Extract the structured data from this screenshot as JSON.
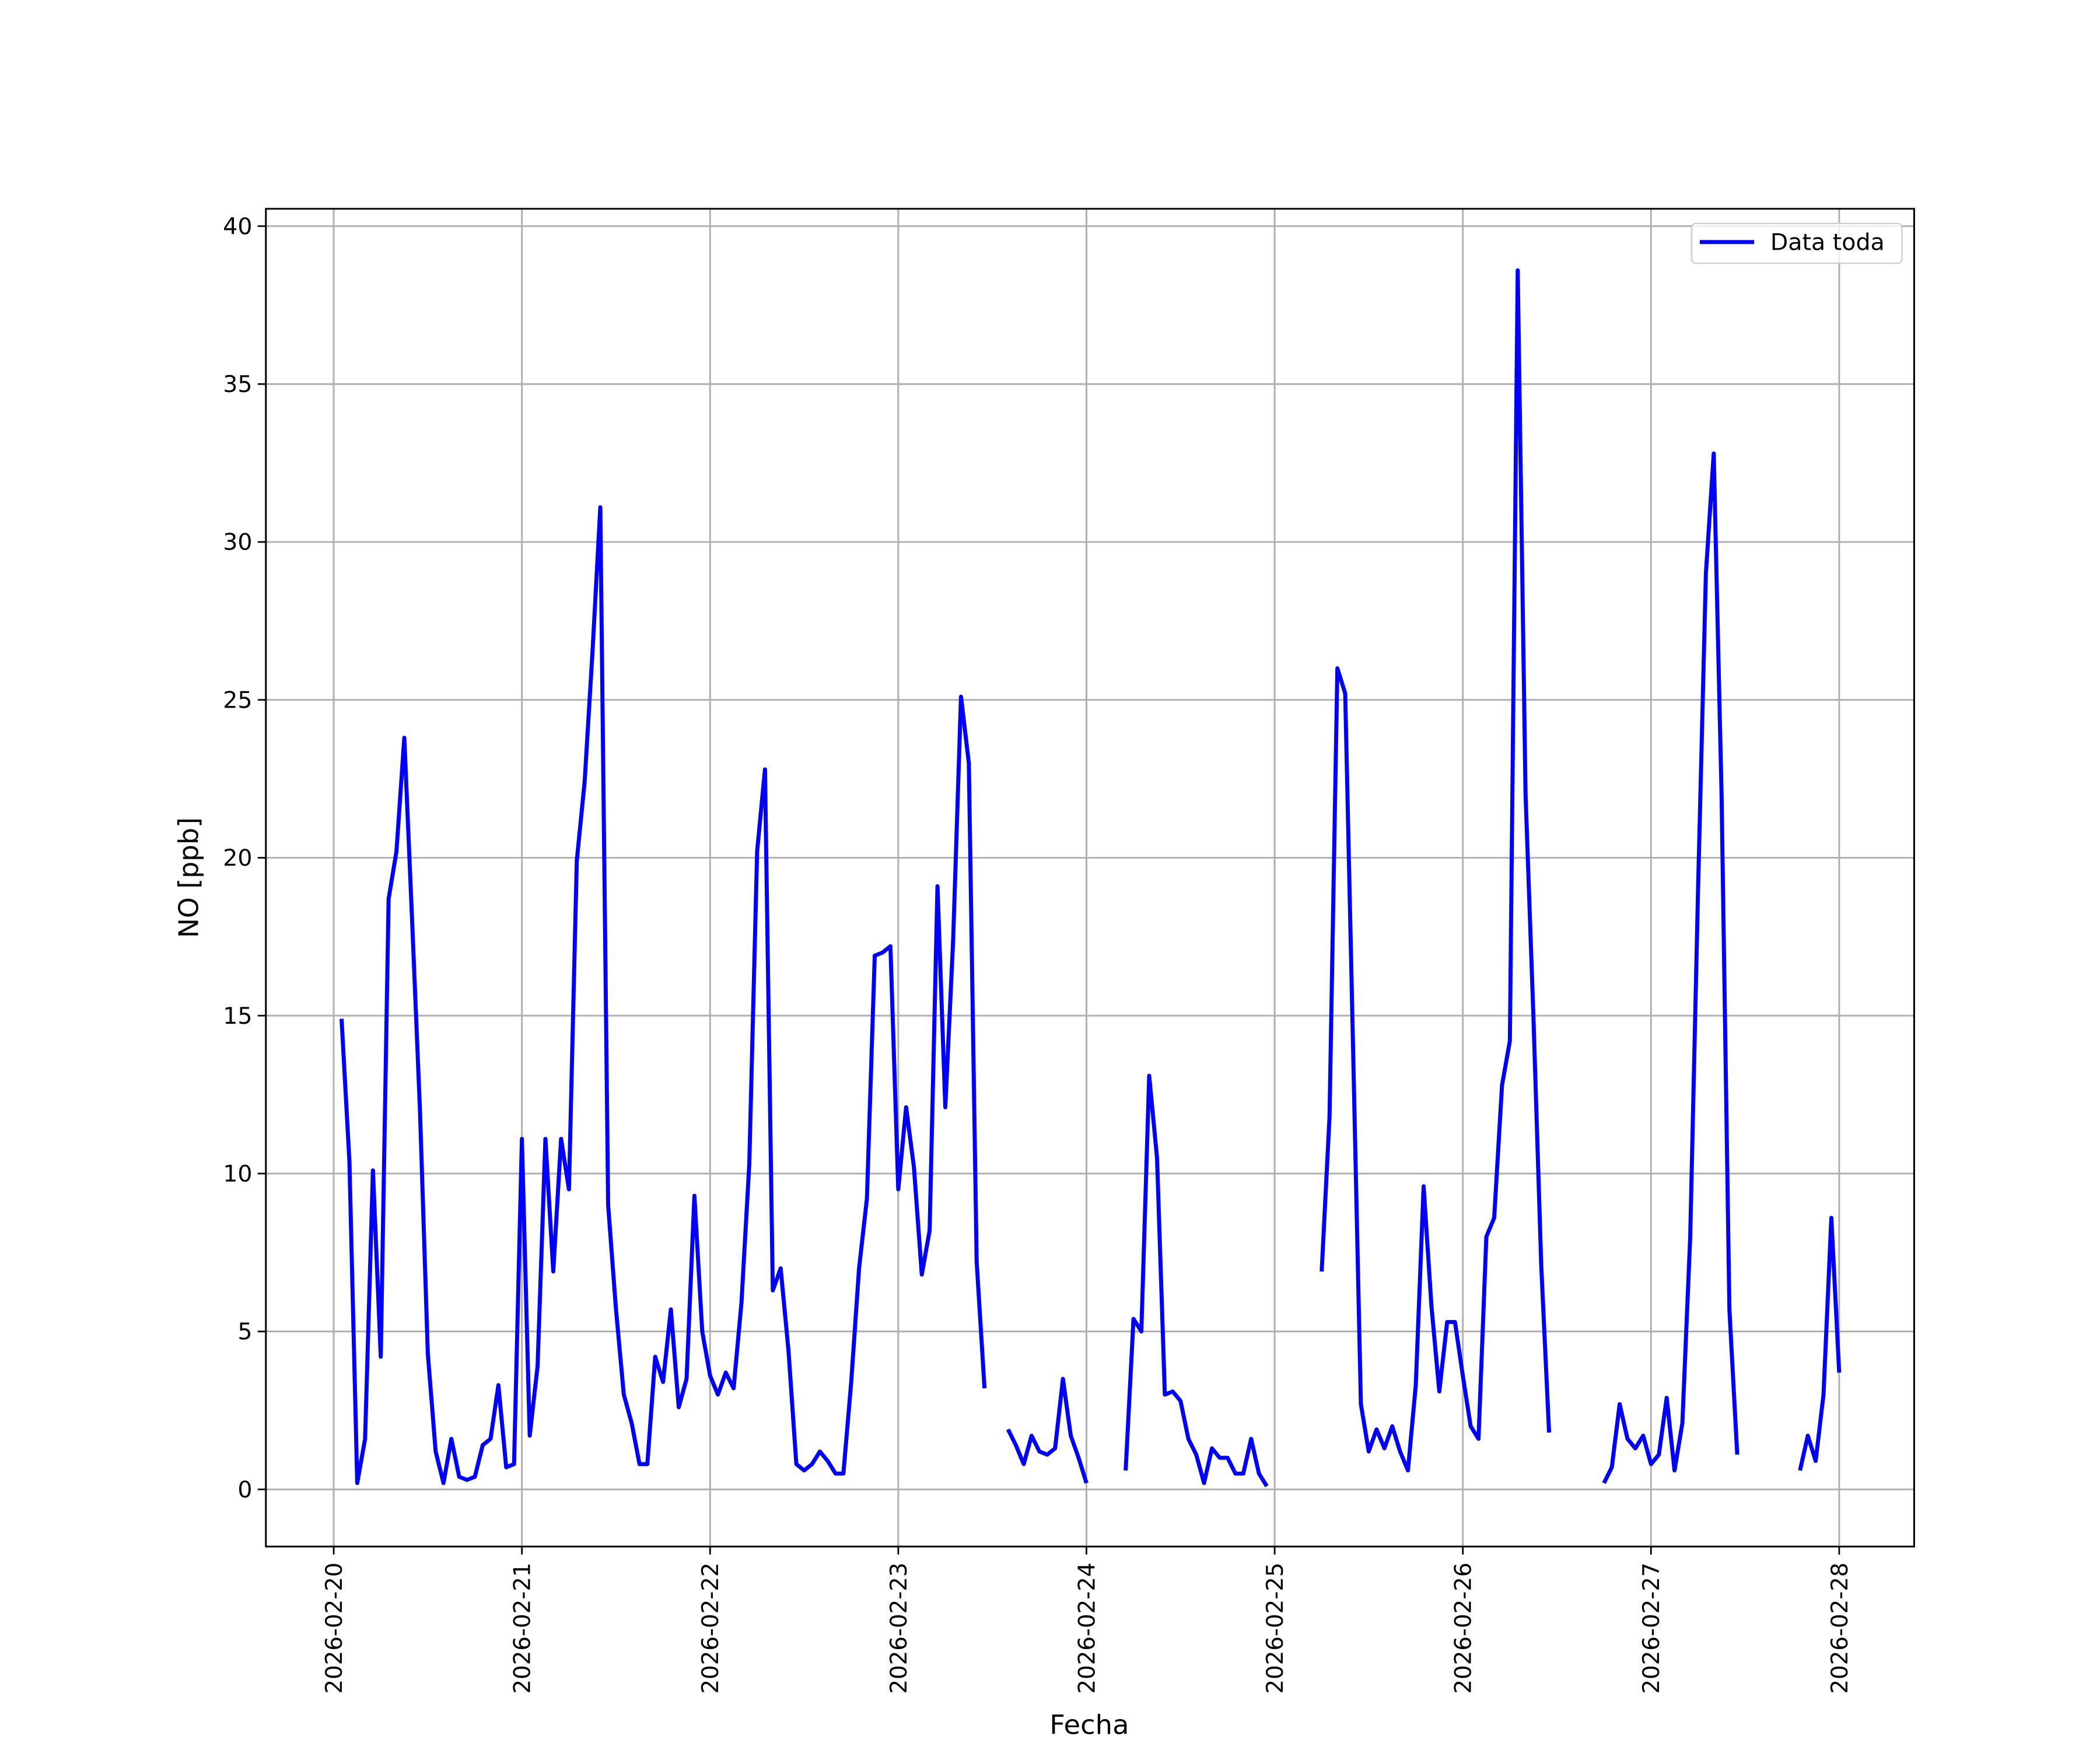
{
  "chart_data": {
    "type": "line",
    "xlabel": "Fecha",
    "ylabel": "NO [ppb]",
    "x": [
      1,
      2,
      3,
      4,
      5,
      6,
      7,
      8,
      9,
      10,
      11,
      12,
      13,
      14,
      15,
      16,
      17,
      18,
      19,
      20,
      21,
      22,
      23,
      24,
      25,
      26,
      27,
      28,
      29,
      30,
      31,
      32,
      33,
      34,
      35,
      36,
      37,
      38,
      39,
      40,
      41,
      42,
      43,
      44,
      45,
      46,
      47,
      48,
      49,
      50,
      51,
      52,
      53,
      54,
      55,
      56,
      57,
      58,
      59,
      60,
      61,
      62,
      63,
      64,
      65,
      66,
      67,
      68,
      69,
      70,
      71,
      72,
      73,
      74,
      75,
      76,
      77,
      78,
      79,
      80,
      81,
      82,
      83,
      84,
      85,
      86,
      87,
      88,
      89,
      90,
      91,
      92,
      93,
      94,
      95,
      96,
      97,
      98,
      99,
      100,
      101,
      102,
      103,
      104,
      105,
      106,
      107,
      108,
      109,
      110,
      111,
      112,
      113,
      114,
      115,
      116,
      117,
      118,
      119,
      120,
      121,
      122,
      123,
      124,
      125,
      126,
      127,
      128,
      129,
      130,
      131,
      132,
      133,
      134,
      135,
      136,
      137,
      138,
      139,
      140,
      141,
      142,
      143,
      144,
      145,
      146,
      147,
      148,
      149,
      150,
      151,
      152,
      153,
      154,
      155,
      156,
      157,
      158,
      159,
      160,
      161,
      162,
      163,
      164,
      165,
      166,
      167,
      168,
      169,
      170,
      171,
      172,
      173,
      174,
      175,
      176,
      177,
      178,
      179,
      180,
      181,
      182,
      183,
      184,
      185,
      186,
      187,
      188,
      189,
      190,
      191,
      192
    ],
    "series": [
      {
        "name": "Data toda",
        "color": "#0000ff",
        "values": [
          14.9,
          10.4,
          0.2,
          1.6,
          10.1,
          4.2,
          18.7,
          20.2,
          23.8,
          18,
          12.0,
          4.3,
          1.2,
          0.2,
          1.6,
          0.4,
          0.3,
          0.4,
          1.4,
          1.6,
          3.3,
          0.7,
          0.8,
          11.1,
          1.7,
          3.9,
          11.1,
          6.9,
          11.1,
          9.5,
          19.9,
          22.4,
          26.5,
          31.1,
          9.0,
          5.7,
          3.0,
          2.1,
          0.8,
          0.8,
          4.2,
          3.4,
          5.7,
          2.6,
          3.5,
          9.3,
          5.0,
          3.6,
          3.0,
          3.7,
          3.2,
          5.9,
          10.3,
          20.2,
          22.8,
          6.3,
          7.0,
          4.4,
          0.8,
          0.6,
          0.8,
          1.2,
          0.9,
          0.5,
          0.5,
          3.4,
          7.0,
          9.2,
          16.9,
          17.0,
          17.2,
          9.5,
          12.1,
          10.2,
          6.8,
          8.2,
          19.1,
          12.1,
          17.4,
          25.1,
          23.0,
          7.2,
          3.2,
          null,
          null,
          1.9,
          1.4,
          0.8,
          1.7,
          1.2,
          1.1,
          1.3,
          3.5,
          1.7,
          1.0,
          0.2,
          null,
          null,
          null,
          null,
          0.6,
          5.4,
          5.0,
          13.1,
          10.5,
          3.0,
          3.1,
          2.8,
          1.6,
          1.1,
          0.2,
          1.3,
          1.0,
          1.0,
          0.5,
          0.5,
          1.6,
          0.5,
          0.1,
          null,
          null,
          null,
          null,
          null,
          null,
          6.9,
          11.8,
          26.0,
          25.2,
          14.0,
          2.7,
          1.2,
          1.9,
          1.3,
          2.0,
          1.2,
          0.6,
          3.3,
          9.6,
          5.8,
          3.1,
          5.3,
          5.3,
          3.6,
          2.0,
          1.6,
          8.0,
          8.6,
          12.8,
          14.2,
          38.6,
          22.0,
          15.0,
          7.1,
          1.8,
          null,
          null,
          null,
          null,
          null,
          null,
          0.2,
          0.7,
          2.7,
          1.6,
          1.3,
          1.7,
          0.8,
          1.1,
          2.9,
          0.6,
          2.1,
          8.0,
          19.0,
          29.0,
          32.8,
          22.0,
          5.7,
          1.1,
          null,
          null,
          null,
          null,
          null,
          null,
          null,
          0.6,
          1.7,
          0.9,
          3.0,
          8.6,
          3.7
        ]
      }
    ],
    "xlim": [
      -8.65,
      201.56
    ],
    "ylim": [
      -1.81,
      40.55
    ],
    "xticks": [
      {
        "value": 0,
        "label": "2026-02-20"
      },
      {
        "value": 24,
        "label": "2026-02-21"
      },
      {
        "value": 48,
        "label": "2026-02-22"
      },
      {
        "value": 72,
        "label": "2026-02-23"
      },
      {
        "value": 96,
        "label": "2026-02-24"
      },
      {
        "value": 120,
        "label": "2026-02-25"
      },
      {
        "value": 144,
        "label": "2026-02-26"
      },
      {
        "value": 168,
        "label": "2026-02-27"
      },
      {
        "value": 192,
        "label": "2026-02-28"
      }
    ],
    "yticks": [
      0,
      5,
      10,
      15,
      20,
      25,
      30,
      35,
      40
    ],
    "grid": true,
    "legend": "upper right"
  }
}
